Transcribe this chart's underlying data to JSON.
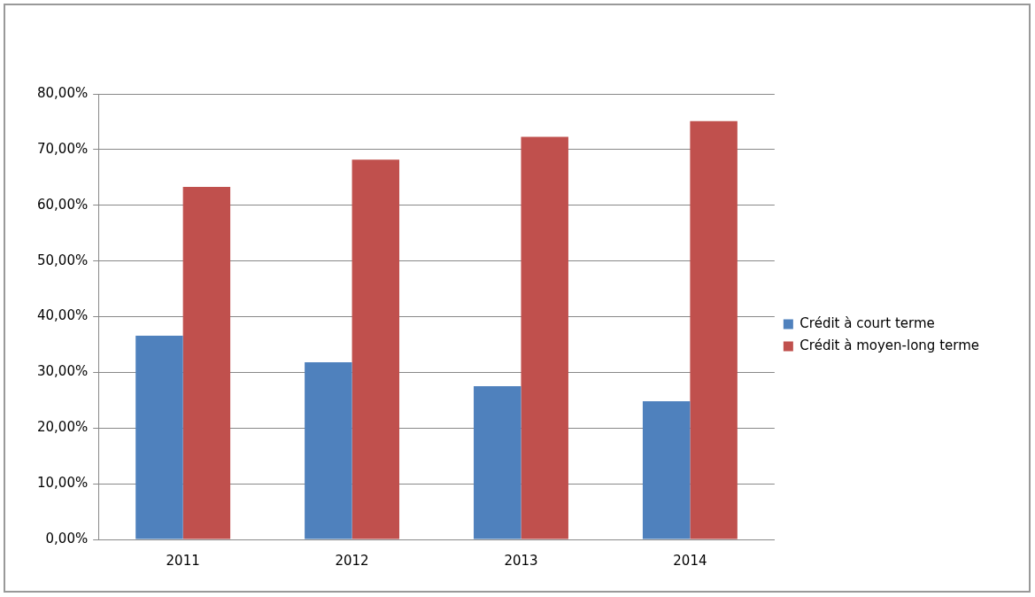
{
  "chart_data": {
    "type": "bar",
    "categories": [
      "2011",
      "2012",
      "2013",
      "2014"
    ],
    "series": [
      {
        "name": "Crédit à court terme",
        "color": "#4f81bd",
        "values": [
          36.6,
          31.8,
          27.5,
          24.8
        ]
      },
      {
        "name": "Crédit à moyen-long terme",
        "color": "#c0504d",
        "values": [
          63.3,
          68.2,
          72.3,
          75.1
        ]
      }
    ],
    "ylim": [
      0,
      80
    ],
    "yticks": [
      {
        "value": 0,
        "label": "0,00%"
      },
      {
        "value": 10,
        "label": "10,00%"
      },
      {
        "value": 20,
        "label": "20,00%"
      },
      {
        "value": 30,
        "label": "30,00%"
      },
      {
        "value": 40,
        "label": "40,00%"
      },
      {
        "value": 50,
        "label": "50,00%"
      },
      {
        "value": 60,
        "label": "60,00%"
      },
      {
        "value": 70,
        "label": "70,00%"
      },
      {
        "value": 80,
        "label": "80,00%"
      }
    ],
    "grid": "y",
    "legend": "right"
  }
}
